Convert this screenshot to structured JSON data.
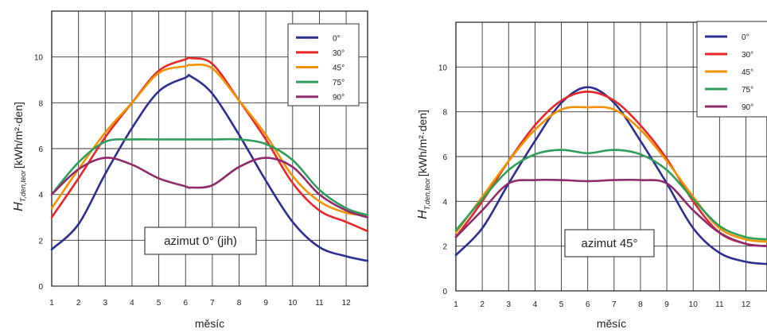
{
  "chart_data": [
    {
      "type": "line",
      "annotation": "azimut 0° (jih)",
      "xlabel": "měsíc",
      "ylabel_main": "H",
      "ylabel_sub": "T,den,teor",
      "ylabel_unit": "[kWh/m²·den]",
      "xticks": [
        "1",
        "2",
        "3",
        "4",
        "5",
        "6",
        "7",
        "8",
        "9",
        "10",
        "11",
        "12"
      ],
      "yticks": [
        "0",
        "2",
        "4",
        "6",
        "8",
        "10"
      ],
      "xlim": [
        1,
        12.8
      ],
      "ylim": [
        0,
        12
      ],
      "grid": true,
      "legend_position": "top-right",
      "x": [
        1,
        2,
        3,
        4,
        5,
        6,
        6.2,
        7,
        8,
        9,
        10,
        11,
        12,
        12.8
      ],
      "series": [
        {
          "name": "0°",
          "color": "#2b2f8f",
          "values": [
            1.6,
            2.7,
            4.9,
            6.9,
            8.5,
            9.1,
            9.15,
            8.4,
            6.6,
            4.6,
            2.8,
            1.7,
            1.3,
            1.1
          ]
        },
        {
          "name": "30°",
          "color": "#e8262a",
          "values": [
            3.0,
            4.7,
            6.5,
            8.0,
            9.4,
            9.9,
            9.95,
            9.7,
            8.1,
            6.4,
            4.5,
            3.3,
            2.8,
            2.4
          ]
        },
        {
          "name": "45°",
          "color": "#f39200",
          "values": [
            3.4,
            5.1,
            6.7,
            8.0,
            9.3,
            9.6,
            9.65,
            9.5,
            8.1,
            6.6,
            4.8,
            3.7,
            3.2,
            3.1
          ]
        },
        {
          "name": "75°",
          "color": "#2e9e5b",
          "values": [
            4.0,
            5.4,
            6.3,
            6.4,
            6.4,
            6.4,
            6.4,
            6.4,
            6.4,
            6.2,
            5.5,
            4.2,
            3.4,
            3.1
          ]
        },
        {
          "name": "90°",
          "color": "#8f2a6b",
          "values": [
            4.0,
            5.1,
            5.6,
            5.3,
            4.7,
            4.35,
            4.3,
            4.4,
            5.2,
            5.6,
            5.2,
            4.0,
            3.3,
            3.0
          ]
        }
      ]
    },
    {
      "type": "line",
      "annotation": "azimut 45°",
      "xlabel": "měsíc",
      "ylabel_main": "H",
      "ylabel_sub": "T,den,teor",
      "ylabel_unit": "[kWh/m²·den]",
      "xticks": [
        "1",
        "2",
        "3",
        "4",
        "5",
        "6",
        "7",
        "8",
        "9",
        "10",
        "11",
        "12"
      ],
      "yticks": [
        "0",
        "2",
        "4",
        "6",
        "8",
        "10"
      ],
      "xlim": [
        1,
        12.8
      ],
      "ylim": [
        0,
        12
      ],
      "grid": true,
      "legend_position": "top-right",
      "x": [
        1,
        2,
        3,
        4,
        5,
        6,
        7,
        8,
        9,
        10,
        11,
        12,
        12.8
      ],
      "series": [
        {
          "name": "0°",
          "color": "#2b2f8f",
          "values": [
            1.6,
            2.8,
            4.8,
            6.7,
            8.4,
            9.1,
            8.4,
            6.7,
            4.8,
            2.8,
            1.7,
            1.3,
            1.2
          ]
        },
        {
          "name": "30°",
          "color": "#e8262a",
          "values": [
            2.4,
            4.0,
            5.8,
            7.4,
            8.5,
            8.9,
            8.5,
            7.4,
            5.9,
            4.0,
            2.6,
            2.1,
            2.0
          ]
        },
        {
          "name": "45°",
          "color": "#f39200",
          "values": [
            2.6,
            4.2,
            5.8,
            7.2,
            8.1,
            8.2,
            8.1,
            7.2,
            5.8,
            4.2,
            2.8,
            2.3,
            2.2
          ]
        },
        {
          "name": "75°",
          "color": "#2e9e5b",
          "values": [
            2.7,
            4.1,
            5.4,
            6.1,
            6.3,
            6.15,
            6.3,
            6.1,
            5.4,
            4.1,
            2.9,
            2.4,
            2.3
          ]
        },
        {
          "name": "90°",
          "color": "#8f2a6b",
          "values": [
            2.4,
            3.6,
            4.8,
            4.95,
            4.95,
            4.9,
            4.95,
            4.95,
            4.8,
            3.6,
            2.6,
            2.1,
            2.0
          ]
        }
      ]
    }
  ]
}
